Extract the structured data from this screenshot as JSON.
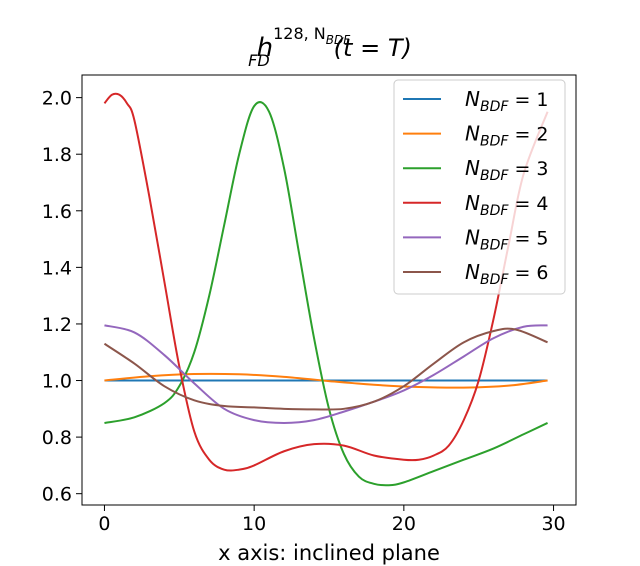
{
  "chart_data": {
    "type": "line",
    "title": {
      "main": "h",
      "sub": "FD",
      "sup": "128, N",
      "sup_sub": "BDF",
      "tail": "(t = T)"
    },
    "xlabel": "x axis: inclined plane",
    "ylabel": "",
    "xlim": [
      -1.5,
      31.5
    ],
    "ylim": [
      0.56,
      2.08
    ],
    "xticks": [
      0,
      10,
      20,
      30
    ],
    "yticks": [
      0.6,
      0.8,
      1.0,
      1.2,
      1.4,
      1.6,
      1.8,
      2.0
    ],
    "grid": false,
    "legend_position": "top-right",
    "series": [
      {
        "name": "N_BDF = 1",
        "label_main": "N",
        "label_sub": "BDF",
        "label_tail": " = 1",
        "color": "#1f77b4",
        "x": [
          0,
          29.6
        ],
        "y": [
          1.0,
          1.0
        ]
      },
      {
        "name": "N_BDF = 2",
        "label_main": "N",
        "label_sub": "BDF",
        "label_tail": " = 2",
        "color": "#ff7f0e",
        "x": [
          0,
          3,
          6,
          9,
          12,
          15,
          18,
          21,
          24,
          27,
          29.6
        ],
        "y": [
          1.0,
          1.015,
          1.023,
          1.022,
          1.013,
          0.998,
          0.985,
          0.977,
          0.975,
          0.982,
          1.0
        ]
      },
      {
        "name": "N_BDF = 3",
        "label_main": "N",
        "label_sub": "BDF",
        "label_tail": " = 3",
        "color": "#2ca02c",
        "x": [
          0,
          2,
          4,
          5,
          6,
          7,
          8,
          9,
          10,
          11,
          12,
          13,
          14,
          15,
          16,
          17,
          18,
          19,
          20,
          22,
          24,
          26,
          28,
          29.6
        ],
        "y": [
          0.85,
          0.87,
          0.92,
          0.98,
          1.1,
          1.3,
          1.55,
          1.8,
          1.97,
          1.95,
          1.75,
          1.45,
          1.15,
          0.9,
          0.74,
          0.66,
          0.635,
          0.63,
          0.64,
          0.68,
          0.72,
          0.76,
          0.81,
          0.85
        ]
      },
      {
        "name": "N_BDF = 4",
        "label_main": "N",
        "label_sub": "BDF",
        "label_tail": " = 4",
        "color": "#d62728",
        "x": [
          0,
          0.5,
          1,
          1.5,
          2,
          3,
          4,
          5,
          6,
          7,
          8,
          9,
          10,
          12,
          14,
          16,
          18,
          20,
          21,
          22,
          23,
          24,
          25,
          26,
          27,
          28,
          29.6
        ],
        "y": [
          1.98,
          2.01,
          2.01,
          1.98,
          1.92,
          1.65,
          1.35,
          1.05,
          0.82,
          0.72,
          0.685,
          0.685,
          0.7,
          0.75,
          0.775,
          0.77,
          0.735,
          0.72,
          0.72,
          0.735,
          0.77,
          0.86,
          1.0,
          1.22,
          1.48,
          1.73,
          1.95
        ]
      },
      {
        "name": "N_BDF = 5",
        "label_main": "N",
        "label_sub": "BDF",
        "label_tail": " = 5",
        "color": "#9467bd",
        "x": [
          0,
          2,
          4,
          6,
          8,
          10,
          12,
          14,
          16,
          18,
          20,
          22,
          24,
          26,
          28,
          29.6
        ],
        "y": [
          1.195,
          1.17,
          1.09,
          0.99,
          0.9,
          0.86,
          0.85,
          0.86,
          0.89,
          0.925,
          0.965,
          1.02,
          1.085,
          1.15,
          1.19,
          1.195
        ]
      },
      {
        "name": "N_BDF = 6",
        "label_main": "N",
        "label_sub": "BDF",
        "label_tail": " = 6",
        "color": "#8c564b",
        "x": [
          0,
          2,
          4,
          6,
          8,
          10,
          12,
          14,
          16,
          18,
          20,
          22,
          24,
          26,
          27.5,
          29.6
        ],
        "y": [
          1.13,
          1.06,
          0.98,
          0.93,
          0.91,
          0.905,
          0.9,
          0.898,
          0.9,
          0.925,
          0.98,
          1.06,
          1.135,
          1.175,
          1.18,
          1.135
        ]
      }
    ]
  }
}
